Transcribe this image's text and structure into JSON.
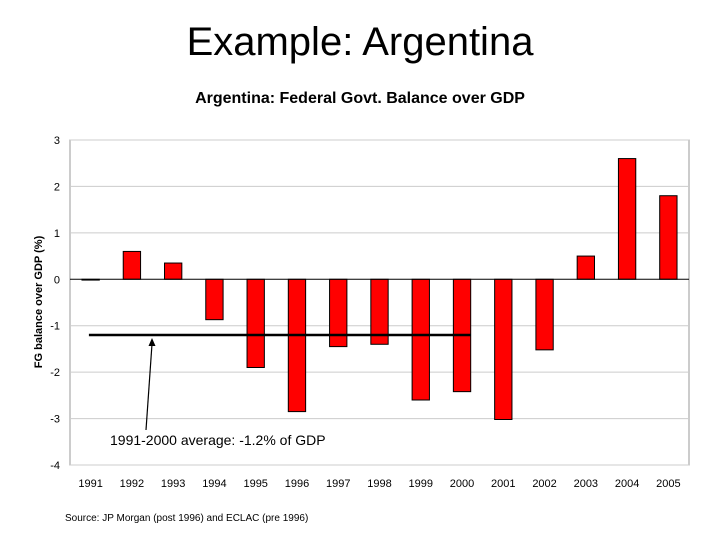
{
  "slide": {
    "title": "Example: Argentina"
  },
  "chart_data": {
    "type": "bar",
    "title": "Argentina: Federal Govt. Balance over GDP",
    "ylabel": "FG balance over GDP (%)",
    "xlabel": "",
    "ylim": [
      -4,
      3
    ],
    "yticks": [
      3,
      2,
      1,
      0,
      -1,
      -2,
      -3,
      -4
    ],
    "ytick_labels": [
      "3",
      "2",
      "1",
      "0",
      "-1",
      "-2",
      "-3",
      "-4"
    ],
    "grid": true,
    "categories": [
      "1991",
      "1992",
      "1993",
      "1994",
      "1995",
      "1996",
      "1997",
      "1998",
      "1999",
      "2000",
      "2001",
      "2002",
      "2003",
      "2004",
      "2005"
    ],
    "values": [
      0.0,
      0.6,
      0.35,
      -0.87,
      -1.9,
      -2.85,
      -1.45,
      -1.4,
      -2.6,
      -2.42,
      -3.02,
      -1.52,
      0.5,
      2.6,
      1.8
    ],
    "bar_color": "#ff0000",
    "average_line": {
      "value": -1.2,
      "from_category": "1991",
      "to_category": "2000"
    },
    "annotation": "1991-2000 average: -1.2% of GDP",
    "source": "Source: JP Morgan (post 1996) and ECLAC (pre 1996)"
  }
}
